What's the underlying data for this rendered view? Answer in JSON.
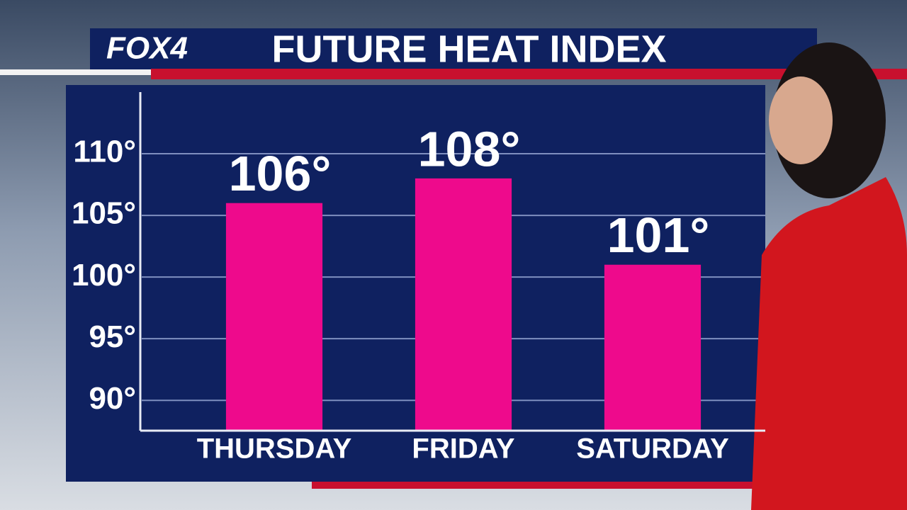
{
  "logo": "FOX4",
  "chart_data": {
    "type": "bar",
    "title": "FUTURE HEAT INDEX",
    "categories": [
      "THURSDAY",
      "FRIDAY",
      "SATURDAY"
    ],
    "values": [
      106,
      108,
      101
    ],
    "value_labels": [
      "106°",
      "108°",
      "101°"
    ],
    "color": "#ee0a8c",
    "ylim": [
      87.6,
      115
    ],
    "yticks": [
      {
        "value": 90,
        "label": "90°"
      },
      {
        "value": 95,
        "label": "95°"
      },
      {
        "value": 100,
        "label": "100°"
      },
      {
        "value": 105,
        "label": "105°"
      },
      {
        "value": 110,
        "label": "110°"
      }
    ],
    "grid": true
  }
}
